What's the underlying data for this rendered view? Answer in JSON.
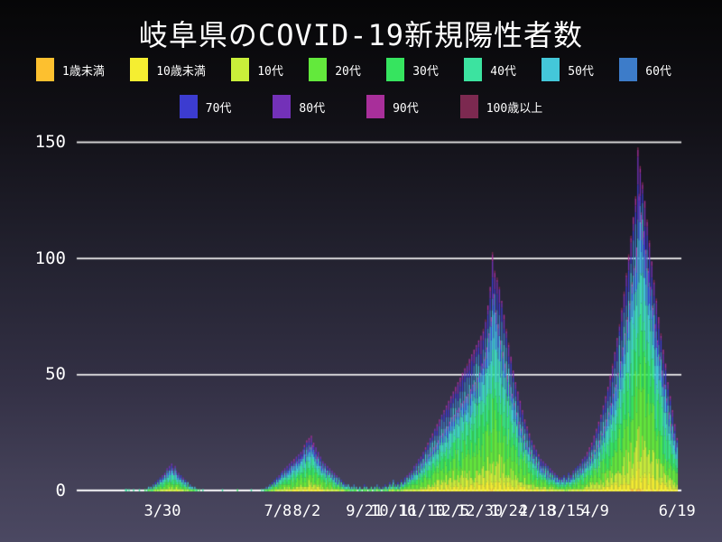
{
  "title": "岐阜県のCOVID-19新規陽性者数",
  "colors": {
    "background_top": "#060607",
    "background_bottom": "#4b4862",
    "grid": "#ededed",
    "axis_line": "#ffffff",
    "text": "#ffffff"
  },
  "chart_data": {
    "type": "bar",
    "stacked": true,
    "title": "岐阜県のCOVID-19新規陽性者数",
    "xlabel": "",
    "ylabel": "",
    "ylim": [
      0,
      150
    ],
    "y_ticks": [
      0,
      50,
      100,
      150
    ],
    "grid": "horizontal",
    "legend_position": "top",
    "x_ticks": [
      {
        "label": "3/30",
        "day": 74
      },
      {
        "label": "7/8",
        "day": 174
      },
      {
        "label": "8/2",
        "day": 199
      },
      {
        "label": "9/21",
        "day": 249
      },
      {
        "label": "10/16",
        "day": 274
      },
      {
        "label": "11/10",
        "day": 299
      },
      {
        "label": "12/5",
        "day": 324
      },
      {
        "label": "12/30",
        "day": 349
      },
      {
        "label": "1/24",
        "day": 374
      },
      {
        "label": "2/18",
        "day": 399
      },
      {
        "label": "3/15",
        "day": 424
      },
      {
        "label": "4/9",
        "day": 449
      },
      {
        "label": "6/19",
        "day": 520
      }
    ],
    "x_domain_days": 524,
    "series": [
      {
        "name": "1歳未満",
        "color": "#fdc02f",
        "share": 0.004
      },
      {
        "name": "10歳未満",
        "color": "#f5ee31",
        "share": 0.045
      },
      {
        "name": "10代",
        "color": "#c9ef3a",
        "share": 0.09
      },
      {
        "name": "20代",
        "color": "#63e93c",
        "share": 0.2
      },
      {
        "name": "30代",
        "color": "#36e45f",
        "share": 0.16
      },
      {
        "name": "40代",
        "color": "#3ce3a0",
        "share": 0.15
      },
      {
        "name": "50代",
        "color": "#44c7d9",
        "share": 0.13
      },
      {
        "name": "60代",
        "color": "#3d7cc9",
        "share": 0.08
      },
      {
        "name": "70代",
        "color": "#3c3cd0",
        "share": 0.06
      },
      {
        "name": "80代",
        "color": "#7331b8",
        "share": 0.045
      },
      {
        "name": "90代",
        "color": "#a82f9a",
        "share": 0.02
      },
      {
        "name": "100歳以上",
        "color": "#7c2950",
        "share": 0.006
      }
    ],
    "daily_totals": [
      0,
      0,
      0,
      0,
      0,
      0,
      0,
      0,
      0,
      0,
      0,
      0,
      0,
      0,
      0,
      0,
      0,
      0,
      0,
      0,
      0,
      0,
      0,
      0,
      0,
      0,
      0,
      0,
      0,
      0,
      0,
      0,
      0,
      0,
      0,
      0,
      0,
      0,
      0,
      0,
      0,
      0,
      1,
      1,
      0,
      1,
      0,
      0,
      0,
      1,
      0,
      0,
      0,
      0,
      1,
      0,
      0,
      0,
      0,
      1,
      0,
      1,
      2,
      1,
      2,
      1,
      3,
      2,
      4,
      3,
      5,
      4,
      6,
      5,
      7,
      6,
      8,
      7,
      10,
      8,
      11,
      9,
      12,
      10,
      8,
      11,
      9,
      7,
      8,
      6,
      7,
      5,
      6,
      4,
      5,
      3,
      4,
      2,
      3,
      2,
      2,
      1,
      2,
      1,
      1,
      0,
      1,
      0,
      0,
      1,
      0,
      0,
      0,
      0,
      0,
      0,
      0,
      0,
      0,
      0,
      0,
      0,
      0,
      0,
      0,
      0,
      1,
      0,
      0,
      0,
      0,
      0,
      0,
      0,
      0,
      0,
      0,
      0,
      0,
      1,
      0,
      0,
      0,
      0,
      0,
      0,
      0,
      0,
      0,
      0,
      0,
      1,
      0,
      0,
      0,
      0,
      0,
      0,
      0,
      0,
      1,
      0,
      1,
      1,
      2,
      1,
      2,
      3,
      2,
      4,
      3,
      5,
      4,
      6,
      5,
      7,
      6,
      8,
      9,
      7,
      10,
      8,
      11,
      9,
      12,
      10,
      13,
      11,
      14,
      12,
      15,
      13,
      16,
      14,
      17,
      15,
      18,
      20,
      16,
      22,
      18,
      23,
      19,
      24,
      20,
      21,
      17,
      19,
      15,
      17,
      13,
      15,
      11,
      13,
      10,
      12,
      9,
      11,
      8,
      10,
      7,
      9,
      6,
      8,
      5,
      7,
      4,
      6,
      3,
      5,
      3,
      4,
      2,
      3,
      2,
      3,
      2,
      1,
      2,
      1,
      3,
      1,
      2,
      0,
      1,
      2,
      1,
      0,
      1,
      3,
      1,
      2,
      0,
      1,
      1,
      2,
      0,
      1,
      2,
      1,
      3,
      1,
      2,
      1,
      0,
      2,
      1,
      3,
      2,
      1,
      2,
      4,
      2,
      3,
      5,
      2,
      3,
      2,
      4,
      2,
      3,
      5,
      3,
      4,
      6,
      4,
      7,
      5,
      8,
      6,
      9,
      7,
      11,
      8,
      12,
      9,
      14,
      10,
      15,
      12,
      17,
      13,
      19,
      14,
      21,
      16,
      23,
      17,
      25,
      19,
      27,
      20,
      29,
      22,
      31,
      24,
      33,
      25,
      35,
      27,
      37,
      28,
      39,
      30,
      41,
      32,
      43,
      33,
      45,
      35,
      47,
      36,
      49,
      38,
      51,
      39,
      53,
      41,
      55,
      42,
      57,
      44,
      59,
      46,
      61,
      47,
      63,
      49,
      65,
      51,
      67,
      55,
      70,
      58,
      74,
      62,
      80,
      68,
      88,
      75,
      103,
      85,
      95,
      78,
      92,
      72,
      88,
      65,
      82,
      60,
      76,
      55,
      70,
      50,
      64,
      46,
      58,
      42,
      52,
      38,
      47,
      34,
      43,
      30,
      39,
      27,
      35,
      24,
      31,
      21,
      28,
      19,
      25,
      17,
      22,
      15,
      20,
      13,
      18,
      12,
      16,
      11,
      14,
      10,
      13,
      9,
      12,
      8,
      11,
      7,
      10,
      6,
      9,
      6,
      8,
      5,
      7,
      5,
      6,
      4,
      6,
      5,
      7,
      4,
      6,
      5,
      8,
      5,
      7,
      6,
      9,
      6,
      10,
      7,
      11,
      8,
      12,
      9,
      14,
      10,
      15,
      12,
      17,
      13,
      19,
      14,
      21,
      16,
      24,
      18,
      27,
      20,
      30,
      22,
      33,
      25,
      37,
      28,
      41,
      31,
      45,
      34,
      50,
      38,
      55,
      42,
      60,
      46,
      66,
      51,
      72,
      56,
      79,
      62,
      86,
      68,
      94,
      75,
      102,
      82,
      110,
      90,
      118,
      97,
      127,
      105,
      148,
      128,
      140,
      120,
      133,
      112,
      125,
      104,
      117,
      96,
      108,
      88,
      99,
      80,
      91,
      72,
      83,
      65,
      75,
      58,
      68,
      52,
      61,
      46,
      55,
      40,
      47,
      34,
      41,
      29,
      35,
      25,
      29,
      20,
      23
    ]
  }
}
